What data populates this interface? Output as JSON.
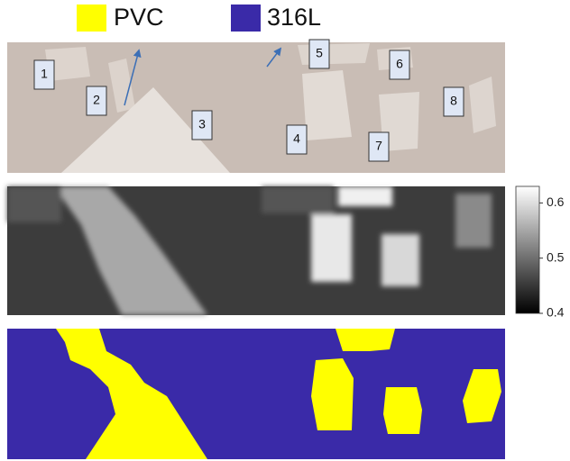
{
  "legend": [
    {
      "label": "PVC",
      "color": "#ffff00"
    },
    {
      "label": "316L",
      "color": "#3a2aa8"
    }
  ],
  "photo_labels": [
    "1",
    "2",
    "3",
    "4",
    "5",
    "6",
    "7",
    "8"
  ],
  "colorbar": {
    "range": [
      0.4,
      0.63
    ],
    "ticks": [
      0.6,
      0.5,
      0.4
    ]
  }
}
